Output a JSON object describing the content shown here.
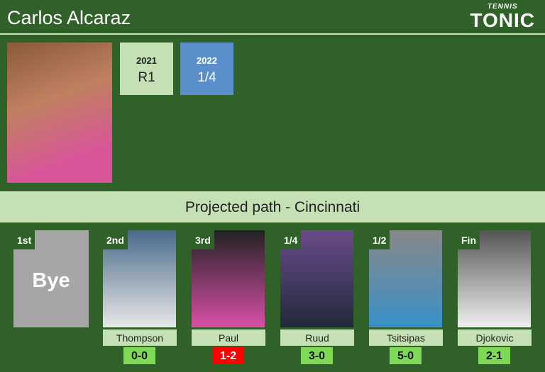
{
  "header": {
    "title": "Carlos Alcaraz",
    "logo_small": "TENNIS",
    "logo_big": "TONIC"
  },
  "history": [
    {
      "year": "2021",
      "result": "R1",
      "color": "#c5e0b4"
    },
    {
      "year": "2022",
      "result": "1/4",
      "color": "#5b8fcc"
    }
  ],
  "banner": "Projected path - Cincinnati",
  "bye": {
    "round": "1st",
    "label": "Bye"
  },
  "rounds": [
    {
      "round": "2nd",
      "name": "Thompson",
      "score": "0-0",
      "score_color": "#7ed957"
    },
    {
      "round": "3rd",
      "name": "Paul",
      "score": "1-2",
      "score_color": "#ff0000"
    },
    {
      "round": "1/4",
      "name": "Ruud",
      "score": "3-0",
      "score_color": "#7ed957"
    },
    {
      "round": "1/2",
      "name": "Tsitsipas",
      "score": "5-0",
      "score_color": "#7ed957"
    },
    {
      "round": "Fin",
      "name": "Djokovic",
      "score": "2-1",
      "score_color": "#7ed957"
    }
  ]
}
